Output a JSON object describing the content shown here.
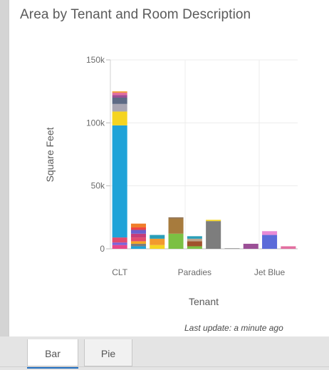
{
  "chart_data": {
    "type": "bar",
    "stacked": true,
    "title": "Area by Tenant and Room Description",
    "xlabel": "Tenant",
    "ylabel": "Square Feet",
    "ylim": [
      0,
      150000
    ],
    "yticks": [
      0,
      50000,
      100000,
      150000
    ],
    "ytick_labels": [
      "0",
      "50k",
      "100k",
      "150k"
    ],
    "visible_x_labels": [
      "CLT",
      "Paradies",
      "Jet Blue"
    ],
    "grid": true,
    "legend": "none",
    "bars": [
      {
        "segments": [
          {
            "value": 3000,
            "color": "#e8468a"
          },
          {
            "value": 2000,
            "color": "#7b61d9"
          },
          {
            "value": 4000,
            "color": "#e24b6f"
          },
          {
            "value": 89000,
            "color": "#1fa3d8"
          },
          {
            "value": 11000,
            "color": "#f5d421"
          },
          {
            "value": 6000,
            "color": "#a9a6b3"
          },
          {
            "value": 5000,
            "color": "#5d6a85"
          },
          {
            "value": 2000,
            "color": "#9b4f96"
          },
          {
            "value": 2000,
            "color": "#e36ea0"
          },
          {
            "value": 1000,
            "color": "#f29a2e"
          }
        ]
      },
      {
        "segments": [
          {
            "value": 2000,
            "color": "#1fa3d8"
          },
          {
            "value": 2000,
            "color": "#7d7d7d"
          },
          {
            "value": 2000,
            "color": "#f5a623"
          },
          {
            "value": 3000,
            "color": "#e24b6f"
          },
          {
            "value": 3000,
            "color": "#c43d7a"
          },
          {
            "value": 3000,
            "color": "#6b5fce"
          },
          {
            "value": 2000,
            "color": "#ef4444"
          },
          {
            "value": 3000,
            "color": "#f07d2a"
          }
        ]
      },
      {
        "segments": [
          {
            "value": 3000,
            "color": "#f5d421"
          },
          {
            "value": 5000,
            "color": "#f29a2e"
          },
          {
            "value": 3000,
            "color": "#2a9fb8"
          }
        ]
      },
      {
        "segments": [
          {
            "value": 12000,
            "color": "#7bc043"
          },
          {
            "value": 12000,
            "color": "#a77b3d"
          },
          {
            "value": 1000,
            "color": "#8e6f4e"
          }
        ]
      },
      {
        "segments": [
          {
            "value": 2000,
            "color": "#7bc043"
          },
          {
            "value": 4000,
            "color": "#a0522d"
          },
          {
            "value": 2000,
            "color": "#c0a58a"
          },
          {
            "value": 2000,
            "color": "#2a9fb8"
          }
        ]
      },
      {
        "segments": [
          {
            "value": 22000,
            "color": "#7d7d7d"
          },
          {
            "value": 1000,
            "color": "#f5d421"
          }
        ]
      },
      {
        "segments": [
          {
            "value": 500,
            "color": "#9a9a9a"
          }
        ]
      },
      {
        "segments": [
          {
            "value": 4000,
            "color": "#9b4f96"
          }
        ]
      },
      {
        "segments": [
          {
            "value": 11000,
            "color": "#5b6bd9"
          },
          {
            "value": 3000,
            "color": "#e88ad6"
          }
        ]
      },
      {
        "segments": [
          {
            "value": 2000,
            "color": "#e36ea0"
          }
        ]
      }
    ]
  },
  "footer": {
    "last_update": "Last update: a minute ago"
  },
  "tabs": [
    {
      "label": "Bar",
      "active": true
    },
    {
      "label": "Pie",
      "active": false
    }
  ]
}
